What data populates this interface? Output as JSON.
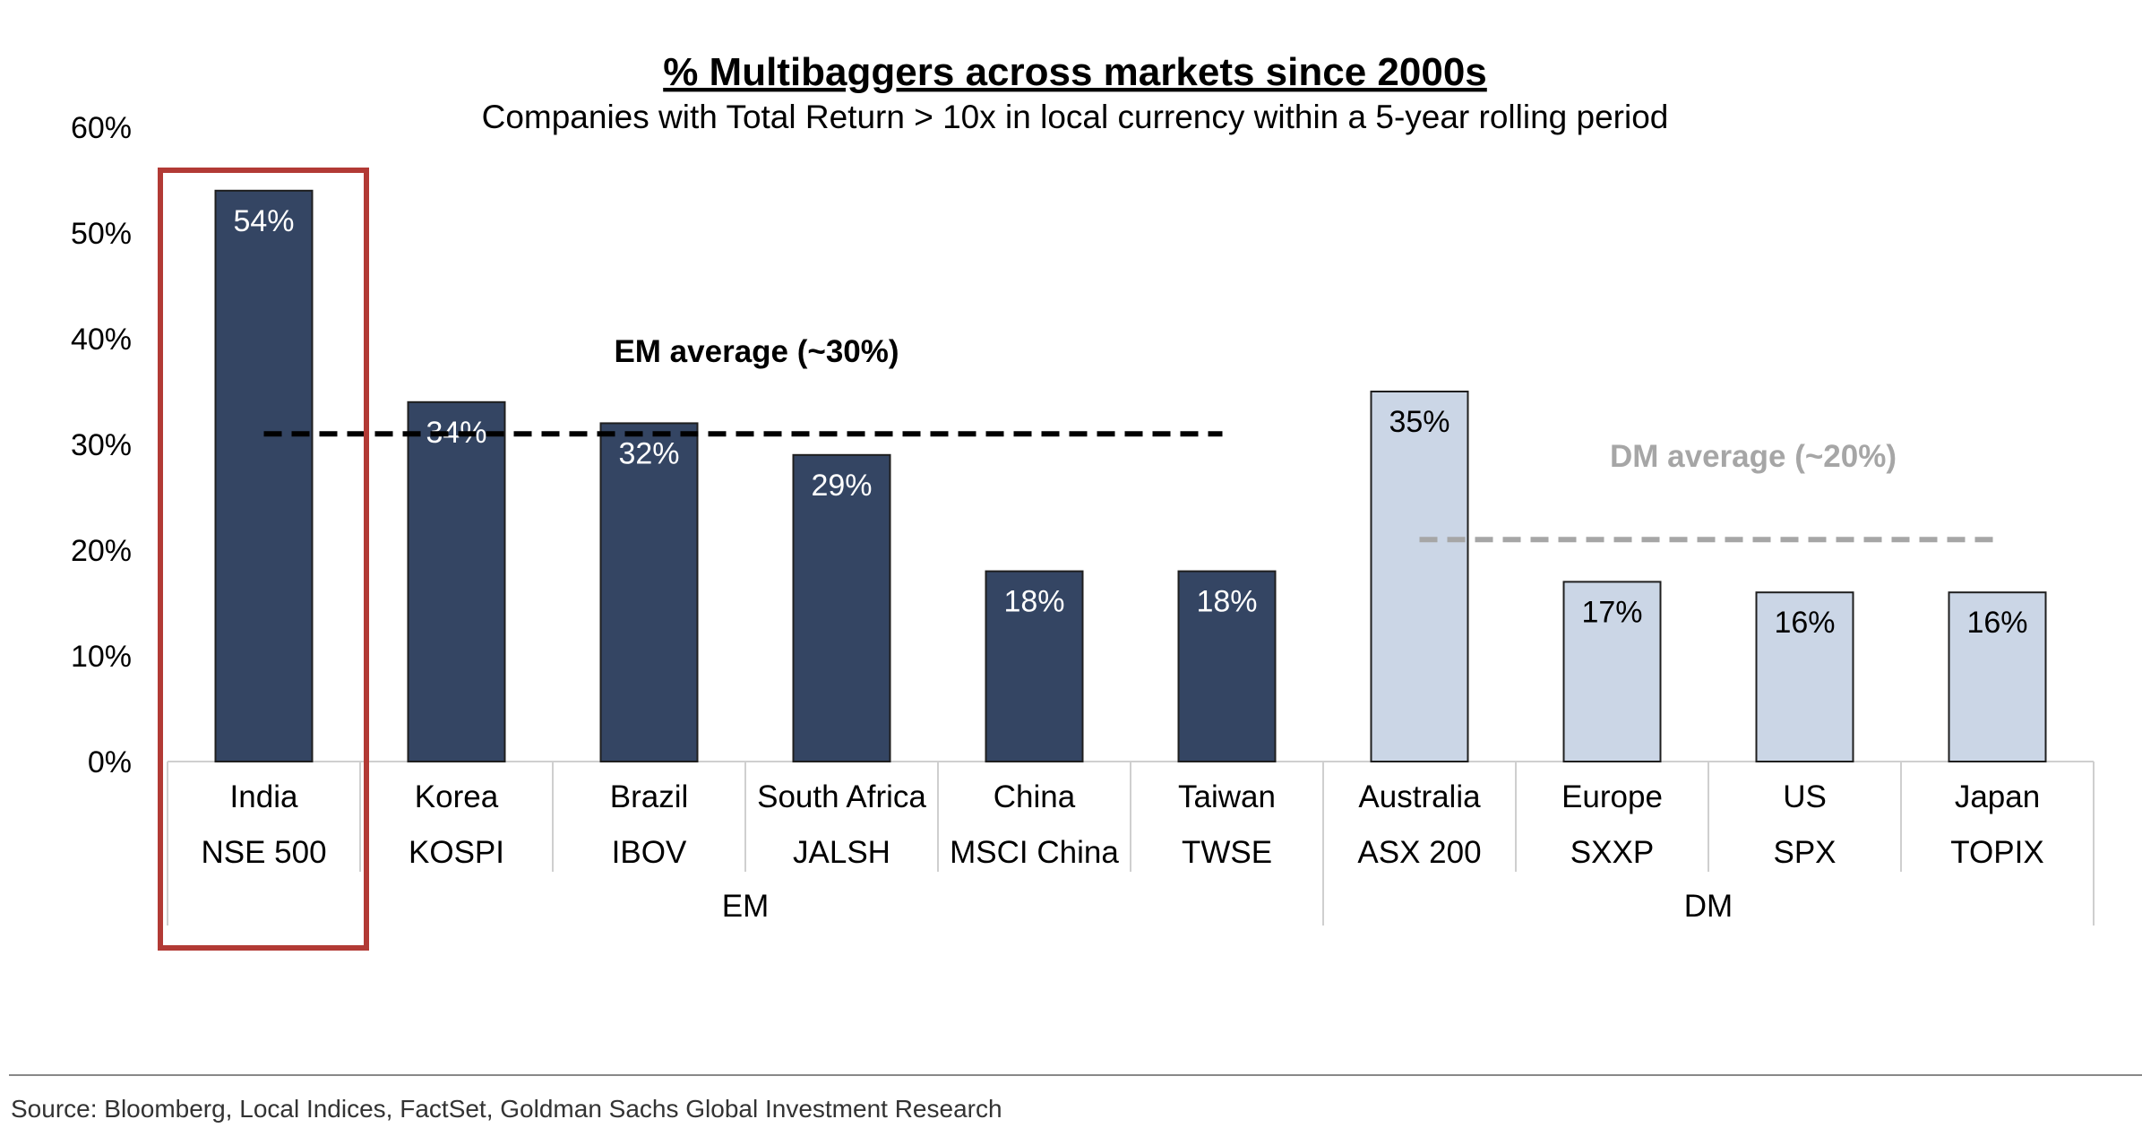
{
  "chart_data": {
    "type": "bar",
    "title": "% Multibaggers across markets since 2000s",
    "subtitle": "Companies with Total Return > 10x in local currency within a 5-year rolling period",
    "xlabel": "",
    "ylabel": "",
    "ylim": [
      0,
      60
    ],
    "y_ticks": [
      "0%",
      "10%",
      "20%",
      "30%",
      "40%",
      "50%",
      "60%"
    ],
    "grid": false,
    "categories": [
      {
        "name": "India",
        "index": "NSE 500",
        "value": 54,
        "label": "54%",
        "group": "EM"
      },
      {
        "name": "Korea",
        "index": "KOSPI",
        "value": 34,
        "label": "34%",
        "group": "EM"
      },
      {
        "name": "Brazil",
        "index": "IBOV",
        "value": 32,
        "label": "32%",
        "group": "EM"
      },
      {
        "name": "South Africa",
        "index": "JALSH",
        "value": 29,
        "label": "29%",
        "group": "EM"
      },
      {
        "name": "China",
        "index": "MSCI China",
        "value": 18,
        "label": "18%",
        "group": "EM"
      },
      {
        "name": "Taiwan",
        "index": "TWSE",
        "value": 18,
        "label": "18%",
        "group": "EM"
      },
      {
        "name": "Australia",
        "index": "ASX 200",
        "value": 35,
        "label": "35%",
        "group": "DM"
      },
      {
        "name": "Europe",
        "index": "SXXP",
        "value": 17,
        "label": "17%",
        "group": "DM"
      },
      {
        "name": "US",
        "index": "SPX",
        "value": 16,
        "label": "16%",
        "group": "DM"
      },
      {
        "name": "Japan",
        "index": "TOPIX",
        "value": 16,
        "label": "16%",
        "group": "DM"
      }
    ],
    "groups": [
      {
        "name": "EM",
        "color": "#344563",
        "label_color": "#ffffff"
      },
      {
        "name": "DM",
        "color": "#cbd6e6",
        "label_color": "#000000"
      }
    ],
    "averages": [
      {
        "label": "EM average (~30%)",
        "value": 31,
        "group": "EM",
        "color": "#000000",
        "label_color": "#000000"
      },
      {
        "label": "DM average (~20%)",
        "value": 21,
        "group": "DM",
        "color": "#a6a6a6",
        "label_color": "#a6a6a6"
      }
    ],
    "highlight": {
      "category": "India",
      "color": "#b23a35"
    }
  },
  "source": "Source: Bloomberg, Local Indices, FactSet, Goldman Sachs Global Investment Research"
}
